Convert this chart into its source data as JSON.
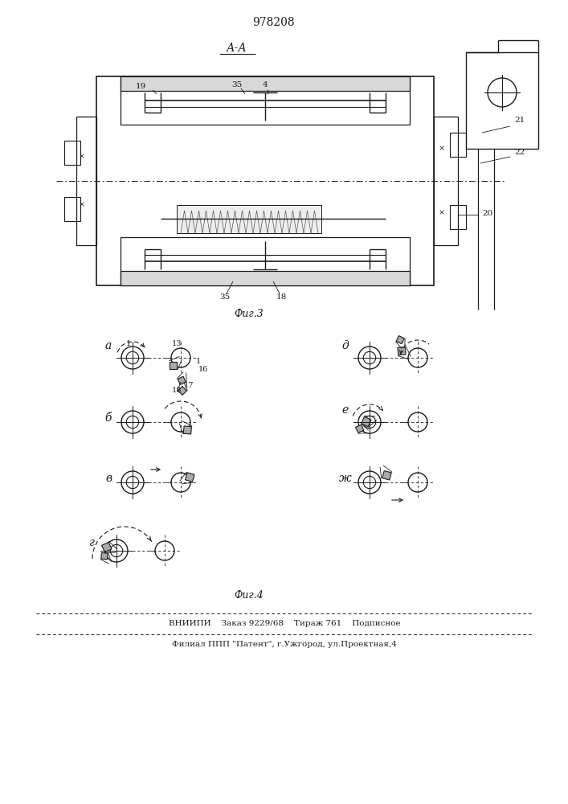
{
  "patent_number": "978208",
  "fig3_label": "Фиг.3",
  "fig4_label": "Фиг.4",
  "section_label": "А-А",
  "footer_line1": "ВНИИПИ    Заказ 9229/68    Тираж 761    Подписное",
  "footer_line2": "Филиал ППП \"Патент\", г.Ужгород, ул.Проектная,4",
  "bg_color": "#ffffff",
  "line_color": "#1a1a1a"
}
